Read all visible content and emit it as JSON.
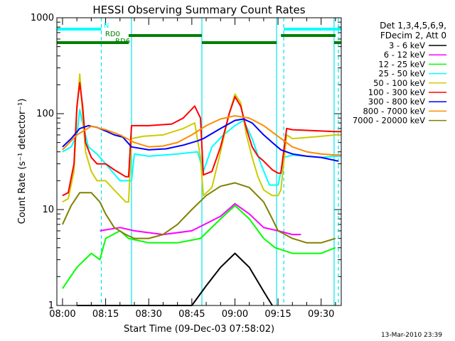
{
  "chart_data": {
    "type": "line",
    "title": "HESSI Observing Summary Count Rates",
    "xlabel": "Start Time (09-Dec-03 07:58:02)",
    "ylabel": "Count Rate (s⁻¹ detector⁻¹)",
    "yscale": "log",
    "ylim": [
      1,
      1000
    ],
    "xlim": [
      "07:58:02",
      "09:37:00"
    ],
    "x_ticks": [
      "08:00",
      "08:15",
      "08:30",
      "08:45",
      "09:00",
      "09:15",
      "09:30"
    ],
    "y_ticks": [
      "1",
      "10",
      "100",
      "1000"
    ],
    "timestamp": "13-Mar-2010 23:39",
    "legend_header": [
      "Det 1,3,4,5,6,9,",
      "FDecim 2, Att 0"
    ],
    "legend_position": "right",
    "flags": [
      {
        "label": "N",
        "color": "#00ffff",
        "segments": [
          [
            "07:58:02",
            "08:13:30"
          ],
          [
            "09:17:00",
            "09:37:00"
          ]
        ]
      },
      {
        "label": "RD0",
        "color": "#008000",
        "segments": [
          [
            "08:23:00",
            "08:48:30"
          ],
          [
            "09:16:00",
            "09:35:00"
          ]
        ]
      },
      {
        "label": "RD6",
        "color": "#008000",
        "segments": [
          [
            "07:58:02",
            "08:23:00"
          ],
          [
            "08:48:30",
            "09:14:30"
          ],
          [
            "09:34:30",
            "09:37:00"
          ]
        ]
      }
    ],
    "markers": {
      "solid": [
        "08:24:00",
        "08:48:30",
        "09:14:30",
        "09:34:30"
      ],
      "dashed": [
        "08:13:30",
        "09:17:00",
        "09:36:00"
      ]
    },
    "series": [
      {
        "name": "3 - 6 keV",
        "color": "#000000",
        "x": [
          "08:05",
          "08:15",
          "08:25",
          "08:35",
          "08:45",
          "08:50",
          "08:55",
          "09:00",
          "09:05",
          "09:10",
          "09:13"
        ],
        "y": [
          1,
          1,
          1,
          1,
          1,
          1.6,
          2.5,
          3.5,
          2.5,
          1.4,
          1
        ]
      },
      {
        "name": "6 - 12 keV",
        "color": "#ff00ff",
        "x": [
          "08:13",
          "08:20",
          "08:25",
          "08:35",
          "08:45",
          "08:55",
          "09:00",
          "09:05",
          "09:10",
          "09:15",
          "09:20",
          "09:23"
        ],
        "y": [
          6,
          6.5,
          6,
          5.5,
          6,
          8.5,
          11.5,
          9,
          6.5,
          6,
          5.5,
          5.5
        ]
      },
      {
        "name": "12 - 25 keV",
        "color": "#00ff00",
        "x": [
          "08:00",
          "08:05",
          "08:10",
          "08:13",
          "08:15",
          "08:20",
          "08:23",
          "08:30",
          "08:40",
          "08:48",
          "08:55",
          "09:00",
          "09:05",
          "09:10",
          "09:14",
          "09:20",
          "09:30",
          "09:35"
        ],
        "y": [
          1.5,
          2.5,
          3.5,
          3,
          5,
          6,
          5,
          4.5,
          4.5,
          5,
          8,
          11,
          8,
          5,
          4,
          3.5,
          3.5,
          4
        ]
      },
      {
        "name": "25 - 50 keV",
        "color": "#00ffff",
        "x": [
          "08:00",
          "08:03",
          "08:05",
          "08:06",
          "08:07",
          "08:09",
          "08:12",
          "08:15",
          "08:20",
          "08:24",
          "08:25",
          "08:30",
          "08:40",
          "08:47",
          "08:49",
          "08:52",
          "08:56",
          "09:00",
          "09:03",
          "09:06",
          "09:09",
          "09:12",
          "09:15",
          "09:17",
          "09:20",
          "09:25",
          "09:30",
          "09:35",
          "09:37"
        ],
        "y": [
          40,
          45,
          60,
          110,
          80,
          45,
          38,
          30,
          20,
          20,
          38,
          36,
          38,
          40,
          25,
          45,
          60,
          75,
          85,
          55,
          30,
          18,
          18,
          35,
          37,
          36,
          35,
          36,
          36
        ]
      },
      {
        "name": "50 - 100 keV",
        "color": "#cccc00",
        "x": [
          "08:00",
          "08:02",
          "08:04",
          "08:05",
          "08:06",
          "08:07",
          "08:08",
          "08:10",
          "08:12",
          "08:15",
          "08:18",
          "08:22",
          "08:23",
          "08:24",
          "08:28",
          "08:35",
          "08:42",
          "08:46",
          "08:48",
          "08:49",
          "08:52",
          "08:55",
          "08:58",
          "09:00",
          "09:02",
          "09:04",
          "09:06",
          "09:08",
          "09:10",
          "09:13",
          "09:15",
          "09:16",
          "09:18",
          "09:20",
          "09:30",
          "09:35",
          "09:37"
        ],
        "y": [
          12,
          13,
          25,
          110,
          260,
          100,
          40,
          25,
          20,
          20,
          16,
          12,
          12,
          55,
          58,
          60,
          70,
          80,
          35,
          14,
          17,
          40,
          100,
          160,
          130,
          60,
          35,
          22,
          16,
          14,
          14,
          16,
          60,
          55,
          58,
          60,
          60
        ]
      },
      {
        "name": "100 - 300 keV",
        "color": "#ff0000",
        "x": [
          "08:00",
          "08:02",
          "08:04",
          "08:05",
          "08:06",
          "08:07",
          "08:08",
          "08:10",
          "08:12",
          "08:15",
          "08:18",
          "08:22",
          "08:23",
          "08:24",
          "08:30",
          "08:38",
          "08:42",
          "08:46",
          "08:48",
          "08:49",
          "08:52",
          "08:55",
          "08:58",
          "09:00",
          "09:02",
          "09:04",
          "09:06",
          "09:08",
          "09:10",
          "09:13",
          "09:15",
          "09:16",
          "09:18",
          "09:20",
          "09:30",
          "09:35",
          "09:37"
        ],
        "y": [
          14,
          15,
          30,
          120,
          210,
          120,
          50,
          35,
          30,
          30,
          26,
          22,
          22,
          75,
          75,
          78,
          90,
          120,
          90,
          23,
          25,
          45,
          100,
          150,
          120,
          70,
          45,
          36,
          32,
          26,
          24,
          24,
          70,
          68,
          66,
          65,
          65
        ]
      },
      {
        "name": "300 - 800 keV",
        "color": "#0000ff",
        "x": [
          "08:00",
          "08:03",
          "08:06",
          "08:09",
          "08:12",
          "08:15",
          "08:18",
          "08:21",
          "08:24",
          "08:30",
          "08:36",
          "08:42",
          "08:47",
          "08:49",
          "08:55",
          "09:00",
          "09:03",
          "09:06",
          "09:10",
          "09:13",
          "09:16",
          "09:20",
          "09:25",
          "09:30",
          "09:36"
        ],
        "y": [
          45,
          55,
          70,
          75,
          72,
          66,
          60,
          57,
          45,
          42,
          43,
          47,
          52,
          55,
          70,
          85,
          88,
          80,
          60,
          50,
          42,
          38,
          36,
          35,
          32
        ]
      },
      {
        "name": "800 - 7000 keV",
        "color": "#ff8c00",
        "x": [
          "08:00",
          "08:05",
          "08:10",
          "08:15",
          "08:20",
          "08:25",
          "08:30",
          "08:35",
          "08:40",
          "08:45",
          "08:50",
          "08:55",
          "09:00",
          "09:05",
          "09:10",
          "09:15",
          "09:20",
          "09:25",
          "09:30",
          "09:35",
          "09:37"
        ],
        "y": [
          42,
          60,
          74,
          68,
          60,
          50,
          45,
          46,
          50,
          60,
          75,
          88,
          95,
          90,
          75,
          58,
          45,
          40,
          38,
          37,
          37
        ]
      },
      {
        "name": "7000 - 20000 keV",
        "color": "#808000",
        "x": [
          "08:00",
          "08:03",
          "08:06",
          "08:10",
          "08:13",
          "08:15",
          "08:18",
          "08:22",
          "08:25",
          "08:30",
          "08:35",
          "08:40",
          "08:45",
          "08:50",
          "08:55",
          "09:00",
          "09:05",
          "09:10",
          "09:13",
          "09:15",
          "09:20",
          "09:25",
          "09:30",
          "09:35"
        ],
        "y": [
          7,
          11,
          15,
          15,
          12,
          9,
          6.5,
          5.5,
          5,
          5,
          5.5,
          7,
          10,
          14,
          17.5,
          19,
          17,
          12,
          8,
          6,
          5,
          4.5,
          4.5,
          5
        ]
      }
    ]
  }
}
